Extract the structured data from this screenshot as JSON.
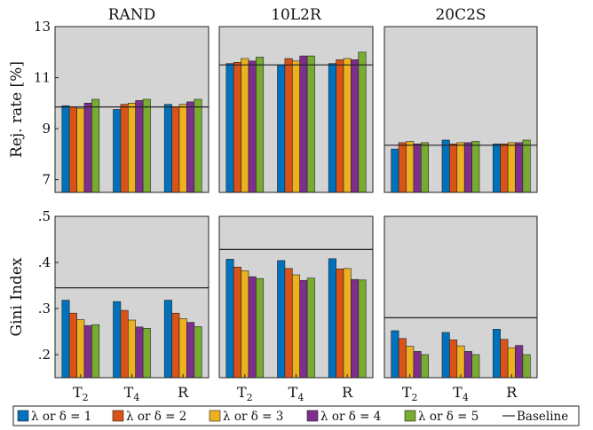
{
  "chart_data": [
    {
      "type": "bar",
      "title": "RAND",
      "ylabel": "Rej. rate [%]",
      "ylim": [
        6.5,
        13
      ],
      "yticks": [
        "7",
        "9",
        "11",
        "13"
      ],
      "categories": [
        "T2",
        "T4",
        "R"
      ],
      "series_values": [
        [
          9.9,
          9.75,
          9.95
        ],
        [
          9.85,
          9.95,
          9.85
        ],
        [
          9.8,
          10.0,
          9.95
        ],
        [
          10.0,
          10.1,
          10.05
        ],
        [
          10.15,
          10.15,
          10.15
        ]
      ],
      "baseline": 9.85
    },
    {
      "type": "bar",
      "title": "10L2R",
      "ylim": [
        6.5,
        13
      ],
      "categories": [
        "T2",
        "T4",
        "R"
      ],
      "series_values": [
        [
          11.55,
          11.5,
          11.55
        ],
        [
          11.6,
          11.75,
          11.7
        ],
        [
          11.75,
          11.65,
          11.75
        ],
        [
          11.65,
          11.85,
          11.7
        ],
        [
          11.8,
          11.85,
          12.0
        ]
      ],
      "baseline": 11.5
    },
    {
      "type": "bar",
      "title": "20C2S",
      "ylim": [
        6.5,
        13
      ],
      "categories": [
        "T2",
        "T4",
        "R"
      ],
      "series_values": [
        [
          8.2,
          8.55,
          8.4
        ],
        [
          8.45,
          8.4,
          8.4
        ],
        [
          8.5,
          8.45,
          8.45
        ],
        [
          8.4,
          8.45,
          8.45
        ],
        [
          8.45,
          8.5,
          8.55
        ]
      ],
      "baseline": 8.35
    },
    {
      "type": "bar",
      "ylabel": "Gini Index",
      "ylim": [
        0.15,
        0.5
      ],
      "yticks": [
        ".2",
        ".3",
        ".4",
        ".5"
      ],
      "categories": [
        "T2",
        "T4",
        "R"
      ],
      "series_values": [
        [
          0.318,
          0.315,
          0.318
        ],
        [
          0.29,
          0.296,
          0.29
        ],
        [
          0.276,
          0.275,
          0.278
        ],
        [
          0.263,
          0.26,
          0.27
        ],
        [
          0.265,
          0.257,
          0.261
        ]
      ],
      "baseline": 0.345
    },
    {
      "type": "bar",
      "ylim": [
        0.15,
        0.5
      ],
      "categories": [
        "T2",
        "T4",
        "R"
      ],
      "series_values": [
        [
          0.407,
          0.404,
          0.408
        ],
        [
          0.39,
          0.387,
          0.386
        ],
        [
          0.382,
          0.373,
          0.387
        ],
        [
          0.369,
          0.361,
          0.363
        ],
        [
          0.365,
          0.366,
          0.362
        ]
      ],
      "baseline": 0.428
    },
    {
      "type": "bar",
      "ylim": [
        0.15,
        0.5
      ],
      "categories": [
        "T2",
        "T4",
        "R"
      ],
      "series_values": [
        [
          0.252,
          0.248,
          0.255
        ],
        [
          0.235,
          0.232,
          0.233
        ],
        [
          0.218,
          0.219,
          0.215
        ],
        [
          0.207,
          0.207,
          0.22
        ],
        [
          0.2,
          0.2,
          0.2
        ]
      ],
      "baseline": 0.28
    }
  ],
  "legend": {
    "placement": "bottom",
    "items": [
      {
        "label": "λ or δ = 1",
        "color": "#0072BD"
      },
      {
        "label": "λ or δ = 2",
        "color": "#D95319"
      },
      {
        "label": "λ or δ = 3",
        "color": "#EDB120"
      },
      {
        "label": "λ or δ = 4",
        "color": "#7E2F8E"
      },
      {
        "label": "λ or δ = 5",
        "color": "#77AC30"
      }
    ],
    "baseline_label": "Baseline"
  },
  "panel_background": "#d4d4d4"
}
